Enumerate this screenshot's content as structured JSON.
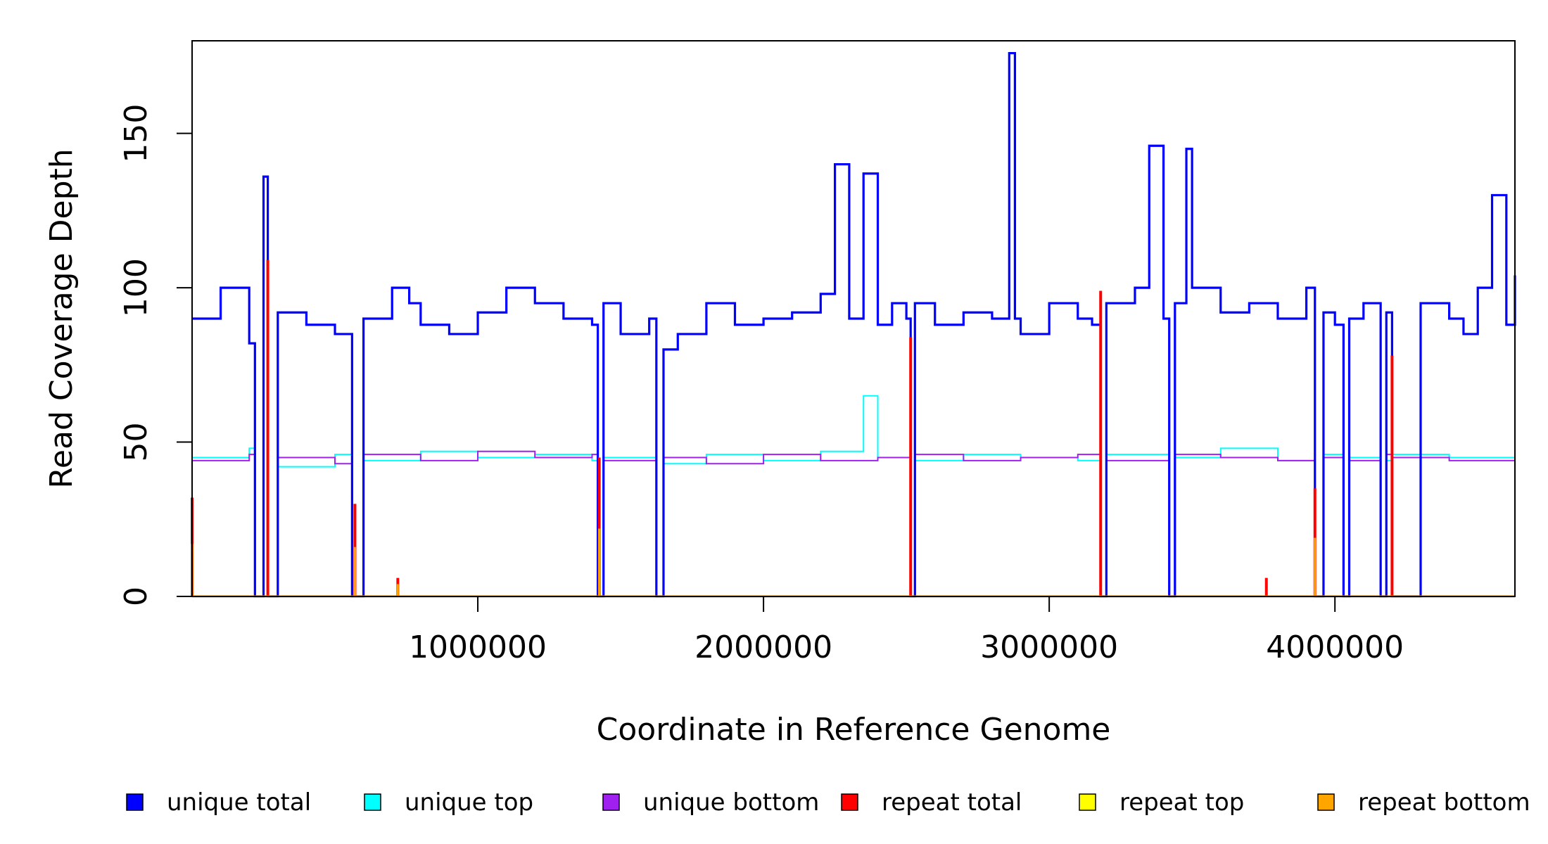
{
  "chart_data": {
    "type": "line",
    "title": "",
    "xlabel": "Coordinate in Reference Genome",
    "ylabel": "Read Coverage Depth",
    "xlim": [
      0,
      4630000
    ],
    "ylim": [
      0,
      180
    ],
    "x_ticks": [
      1000000,
      2000000,
      3000000,
      4000000
    ],
    "x_tick_labels": [
      "1000000",
      "2000000",
      "3000000",
      "4000000"
    ],
    "y_ticks": [
      0,
      50,
      100,
      150
    ],
    "y_tick_labels": [
      "0",
      "50",
      "100",
      "150"
    ],
    "grid": false,
    "legend_position": "bottom",
    "series": [
      {
        "name": "unique total",
        "color": "#0000FF",
        "x": [
          0,
          100000,
          200000,
          220000,
          250000,
          265000,
          300000,
          400000,
          500000,
          560000,
          600000,
          700000,
          760000,
          800000,
          900000,
          1000000,
          1100000,
          1200000,
          1300000,
          1400000,
          1420000,
          1440000,
          1500000,
          1600000,
          1625000,
          1650000,
          1700000,
          1800000,
          1900000,
          2000000,
          2100000,
          2200000,
          2250000,
          2300000,
          2350000,
          2400000,
          2450000,
          2500000,
          2515000,
          2530000,
          2600000,
          2700000,
          2800000,
          2860000,
          2880000,
          2900000,
          3000000,
          3100000,
          3150000,
          3180000,
          3200000,
          3300000,
          3350000,
          3400000,
          3420000,
          3440000,
          3480000,
          3500000,
          3600000,
          3700000,
          3800000,
          3900000,
          3930000,
          3960000,
          4000000,
          4030000,
          4050000,
          4100000,
          4160000,
          4180000,
          4200000,
          4300000,
          4400000,
          4450000,
          4500000,
          4550000,
          4600000,
          4630000
        ],
        "values": [
          90,
          100,
          82,
          0,
          136,
          0,
          92,
          88,
          85,
          0,
          90,
          100,
          95,
          88,
          85,
          92,
          100,
          95,
          90,
          88,
          0,
          95,
          85,
          90,
          0,
          80,
          85,
          95,
          88,
          90,
          92,
          98,
          140,
          90,
          137,
          88,
          95,
          90,
          0,
          95,
          88,
          92,
          90,
          176,
          90,
          85,
          95,
          90,
          88,
          0,
          95,
          100,
          146,
          90,
          0,
          95,
          145,
          100,
          92,
          95,
          90,
          100,
          0,
          92,
          88,
          0,
          90,
          95,
          0,
          92,
          0,
          95,
          90,
          85,
          100,
          130,
          88,
          104
        ]
      },
      {
        "name": "unique top",
        "color": "#00FFFF",
        "x": [
          0,
          200000,
          220000,
          300000,
          500000,
          560000,
          600000,
          800000,
          1000000,
          1200000,
          1400000,
          1420000,
          1440000,
          1625000,
          1650000,
          1800000,
          2000000,
          2200000,
          2350000,
          2400000,
          2515000,
          2530000,
          2700000,
          2900000,
          3100000,
          3180000,
          3200000,
          3420000,
          3440000,
          3600000,
          3800000,
          3930000,
          3960000,
          4030000,
          4050000,
          4160000,
          4180000,
          4200000,
          4400000,
          4630000
        ],
        "values": [
          45,
          48,
          0,
          42,
          46,
          0,
          44,
          47,
          45,
          46,
          44,
          0,
          45,
          0,
          43,
          46,
          44,
          47,
          65,
          45,
          0,
          44,
          46,
          45,
          44,
          0,
          46,
          0,
          45,
          48,
          44,
          0,
          46,
          0,
          45,
          0,
          44,
          46,
          45,
          47
        ]
      },
      {
        "name": "unique bottom",
        "color": "#A020F0",
        "x": [
          0,
          200000,
          220000,
          300000,
          500000,
          560000,
          600000,
          800000,
          1000000,
          1200000,
          1400000,
          1420000,
          1440000,
          1625000,
          1650000,
          1800000,
          2000000,
          2200000,
          2400000,
          2515000,
          2530000,
          2700000,
          2900000,
          3100000,
          3180000,
          3200000,
          3420000,
          3440000,
          3600000,
          3800000,
          3930000,
          3960000,
          4030000,
          4050000,
          4160000,
          4180000,
          4200000,
          4400000,
          4630000
        ],
        "values": [
          44,
          46,
          0,
          45,
          43,
          0,
          46,
          44,
          47,
          45,
          46,
          0,
          44,
          0,
          45,
          43,
          46,
          44,
          45,
          0,
          46,
          44,
          45,
          46,
          0,
          44,
          0,
          46,
          45,
          44,
          0,
          45,
          0,
          44,
          0,
          46,
          45,
          44,
          46
        ]
      },
      {
        "name": "repeat total",
        "color": "#FF0000",
        "x": [
          0,
          265000,
          570000,
          720000,
          1425000,
          2515000,
          3180000,
          3760000,
          3930000,
          4200000
        ],
        "values": [
          32,
          109,
          30,
          6,
          45,
          84,
          99,
          6,
          35,
          78
        ]
      },
      {
        "name": "repeat top",
        "color": "#FFFF00",
        "x": [
          0,
          4630000
        ],
        "values": [
          0,
          0
        ]
      },
      {
        "name": "repeat bottom",
        "color": "#FFA500",
        "x": [
          0,
          570000,
          720000,
          1425000,
          3930000
        ],
        "values": [
          17,
          16,
          4,
          22,
          19
        ]
      }
    ],
    "legend": [
      {
        "label": "unique total",
        "color": "#0000FF"
      },
      {
        "label": "unique top",
        "color": "#00FFFF"
      },
      {
        "label": "unique bottom",
        "color": "#A020F0"
      },
      {
        "label": "repeat total",
        "color": "#FF0000"
      },
      {
        "label": "repeat top",
        "color": "#FFFF00"
      },
      {
        "label": "repeat bottom",
        "color": "#FFA500"
      }
    ]
  }
}
